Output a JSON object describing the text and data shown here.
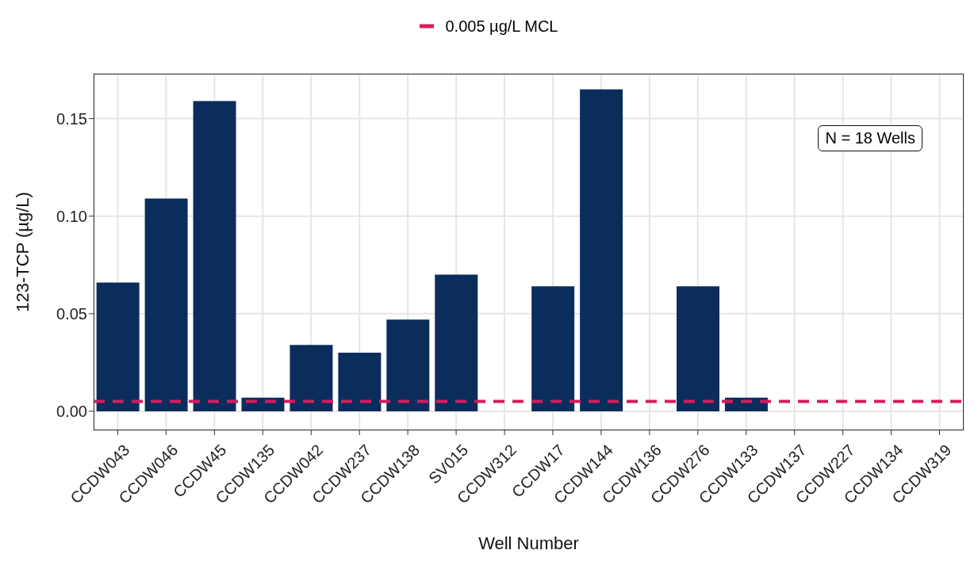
{
  "chart_data": {
    "type": "bar",
    "xlabel": "Well Number",
    "ylabel": "123-TCP (µg/L)",
    "categories": [
      "CCDW043",
      "CCDW046",
      "CCDW45",
      "CCDW135",
      "CCDW042",
      "CCDW237",
      "CCDW138",
      "SV015",
      "CCDW312",
      "CCDW17",
      "CCDW144",
      "CCDW136",
      "CCDW276",
      "CCDW133",
      "CCDW137",
      "CCDW227",
      "CCDW134",
      "CCDW319"
    ],
    "values": [
      0.066,
      0.109,
      0.159,
      0.007,
      0.034,
      0.03,
      0.047,
      0.07,
      0,
      0.064,
      0.165,
      0,
      0.064,
      0.007,
      0,
      0,
      0,
      0
    ],
    "color": "#0a2d5c",
    "ylim": [
      -0.0098,
      0.173
    ],
    "yticks": [
      {
        "value": 0,
        "label": "0.00"
      },
      {
        "value": 0.05,
        "label": "0.05"
      },
      {
        "value": 0.1,
        "label": "0.10"
      },
      {
        "value": 0.15,
        "label": "0.15"
      }
    ],
    "grid": true,
    "legend": "top",
    "ref_lines": [
      {
        "axis": "y",
        "value": 0.005,
        "label": "0.005 µg/L MCL",
        "color": "#d81b60",
        "line_style": "dashed"
      }
    ],
    "annotations": [
      "N = 18 Wells"
    ]
  }
}
